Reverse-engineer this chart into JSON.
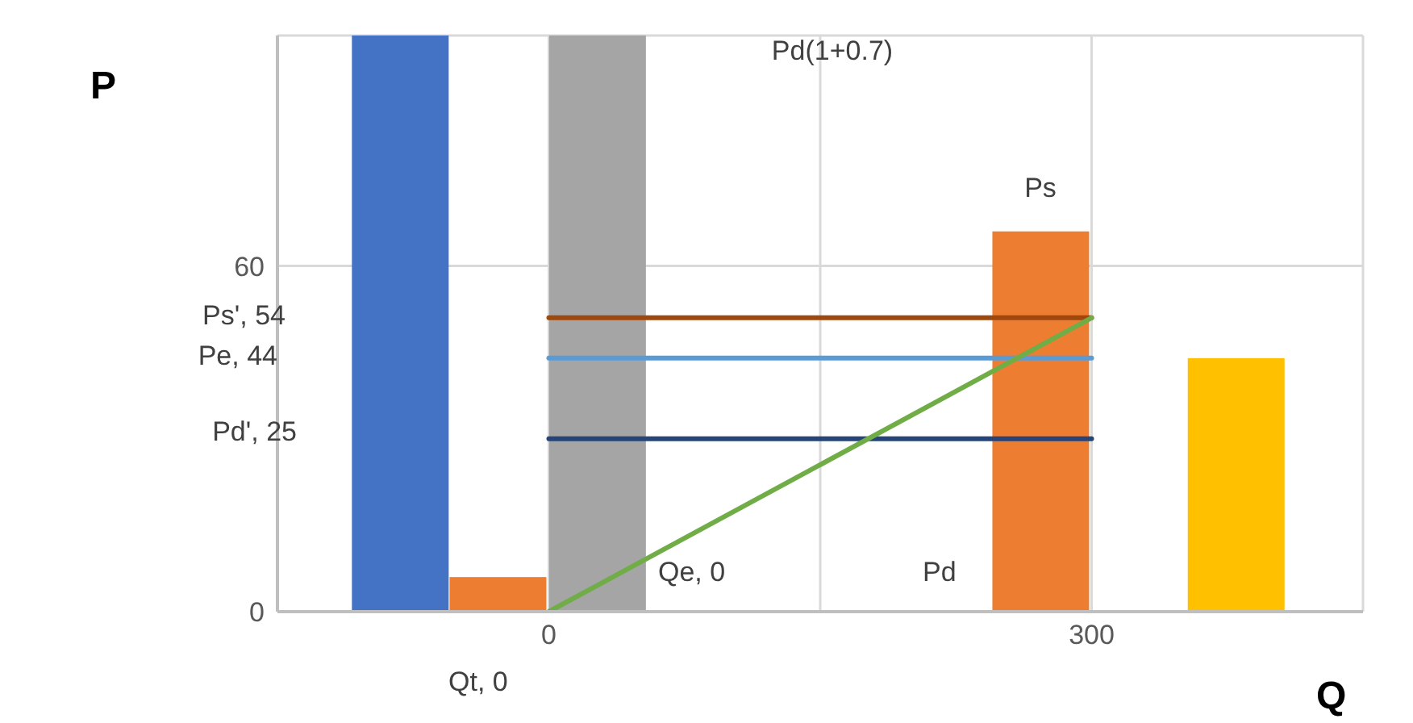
{
  "chart_data": {
    "type": "bar",
    "xlabel": "Q",
    "ylabel": "P",
    "xlim": [
      -150,
      450
    ],
    "xticks": [
      {
        "value": -150,
        "label": null
      },
      0,
      {
        "value": 150,
        "label": null
      },
      300,
      {
        "value": 450,
        "label": null
      }
    ],
    "ylim": [
      0,
      100
    ],
    "yticks": [
      0,
      60
    ],
    "grid": true,
    "legend": false,
    "series": [
      {
        "x": [
          -82,
          -28,
          27,
          272,
          380
        ],
        "values": [
          100,
          6,
          100,
          66,
          44
        ],
        "colors": [
          "#4472c4",
          "#ed7d31",
          "#a5a5a5",
          "#ed7d31",
          "#ffc000"
        ]
      },
      {
        "type": "line",
        "x": [
          0,
          300
        ],
        "values": [
          51,
          51
        ],
        "color": "#9e480e"
      },
      {
        "type": "line",
        "x": [
          0,
          300
        ],
        "values": [
          44,
          44
        ],
        "color": "#5b9bd5"
      },
      {
        "type": "line",
        "x": [
          0,
          300
        ],
        "values": [
          30,
          30
        ],
        "color": "#264478"
      },
      {
        "type": "line",
        "x": [
          0,
          300
        ],
        "values": [
          0,
          51
        ],
        "color": "#70ad47"
      }
    ],
    "annotations": [
      "Ps', 54",
      "Pe, 44",
      "Pd', 25",
      "Pd(1+0.7)",
      "Ps",
      "Qe, 0",
      "Pd",
      "Qt, 0"
    ]
  }
}
